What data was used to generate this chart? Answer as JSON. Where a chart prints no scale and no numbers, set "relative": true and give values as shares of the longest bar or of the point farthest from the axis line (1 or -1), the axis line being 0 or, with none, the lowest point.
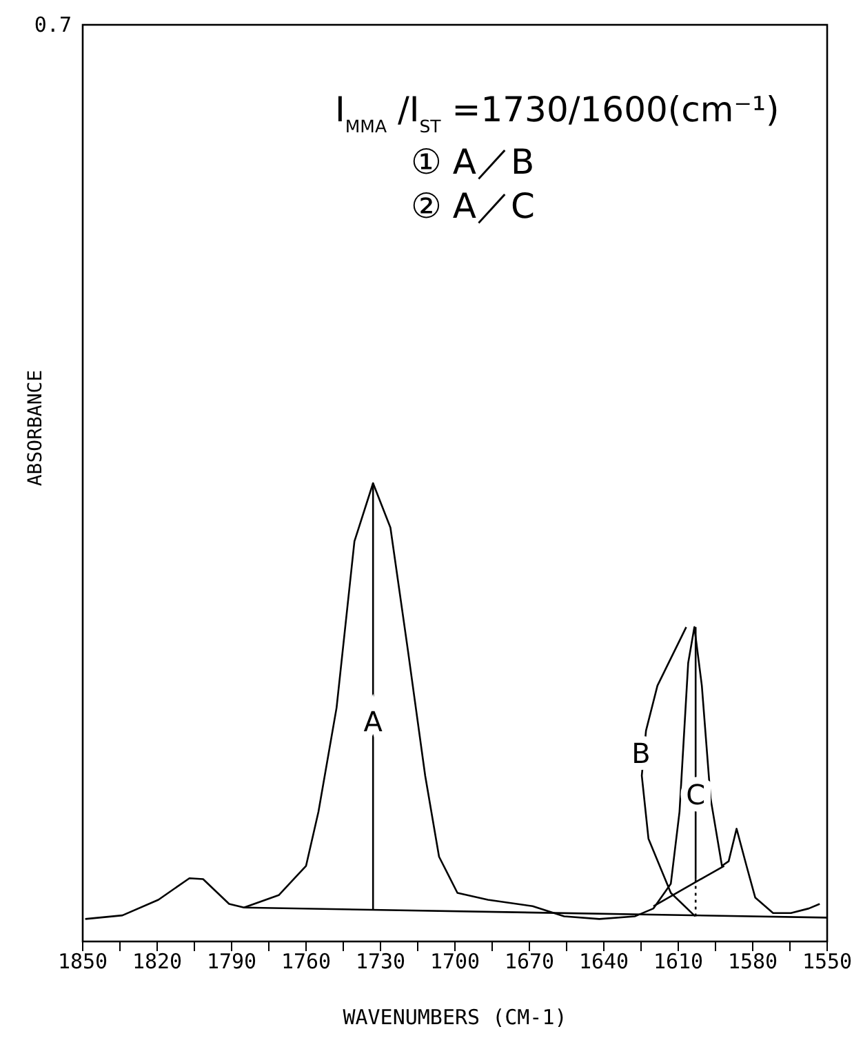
{
  "chart_data": {
    "type": "line",
    "relative": true,
    "xlabel": "WAVENUMBERS (CM-1)",
    "ylabel": "ABSORBANCE",
    "xlim": [
      1850,
      1550
    ],
    "xticks": [
      1850,
      {
        "value": 1835,
        "label": null
      },
      1820,
      {
        "value": 1805,
        "label": null
      },
      1790,
      {
        "value": 1775,
        "label": null
      },
      1760,
      {
        "value": 1745,
        "label": null
      },
      1730,
      {
        "value": 1715,
        "label": null
      },
      1700,
      {
        "value": 1685,
        "label": null
      },
      1670,
      {
        "value": 1655,
        "label": null
      },
      1640,
      {
        "value": 1625,
        "label": null
      },
      1610,
      {
        "value": 1595,
        "label": null
      },
      1580,
      {
        "value": 1565,
        "label": null
      },
      1550
    ],
    "legend": false,
    "grid": false,
    "marker": "none",
    "series": [
      {
        "color": "#000000",
        "x": [
          1849,
          1834,
          1819.5,
          1807,
          1801.5,
          1791,
          1785,
          1771,
          1760,
          1755,
          1747.7,
          1740.5,
          1733,
          1726,
          1719,
          1712,
          1706.4,
          1699,
          1686.7,
          1668.7,
          1656,
          1641.8,
          1627.4,
          1620,
          1613,
          1609.5,
          1606,
          1603.5,
          1600.5,
          1597,
          1592.4,
          1589.7,
          1586.5,
          1582.5,
          1579,
          1571.8,
          1564.6,
          1557.4,
          1553
        ],
        "values": [
          0.049,
          0.057,
          0.091,
          0.138,
          0.136,
          0.082,
          0.074,
          0.101,
          0.165,
          0.283,
          0.51,
          0.873,
          1,
          0.903,
          0.637,
          0.362,
          0.185,
          0.106,
          0.091,
          0.077,
          0.055,
          0.049,
          0.055,
          0.072,
          0.126,
          0.283,
          0.608,
          0.686,
          0.558,
          0.313,
          0.165,
          0.175,
          0.246,
          0.165,
          0.096,
          0.062,
          0.062,
          0.072,
          0.082
        ]
      },
      {
        "color": "#000000",
        "x": [
          1785,
          1550
        ],
        "values": [
          0.074,
          0.052
        ]
      },
      {
        "color": "#000000",
        "x": [
          1733,
          1733
        ],
        "values": [
          1,
          0.068
        ]
      },
      {
        "color": "#000000",
        "x": [
          1606.8,
          1618.4,
          1623,
          1624.7,
          1622,
          1613,
          1603.2
        ],
        "values": [
          0.686,
          0.558,
          0.46,
          0.362,
          0.224,
          0.106,
          0.055
        ]
      },
      {
        "color": "#000000",
        "x": [
          1620,
          1591.5
        ],
        "values": [
          0.077,
          0.165
        ]
      },
      {
        "color": "#000000",
        "x": [
          1603,
          1603
        ],
        "values": [
          0.686,
          0.136
        ]
      },
      {
        "color": "#000000",
        "x": [
          1603,
          1603
        ],
        "values": [
          0.136,
          0.055
        ],
        "line_style": "dotted"
      }
    ],
    "annotations": [
      "0.7",
      "I$_{MMA}$ /I$_{ST}$=1730/1600(cm⁻¹)",
      "①  A／B",
      "②  A／C",
      {
        "text": "A",
        "x": 1733,
        "y": 0.48
      },
      {
        "text": "B",
        "x": 1625,
        "y": 0.41
      },
      {
        "text": "C",
        "x": 1603,
        "y": 0.32
      }
    ]
  }
}
